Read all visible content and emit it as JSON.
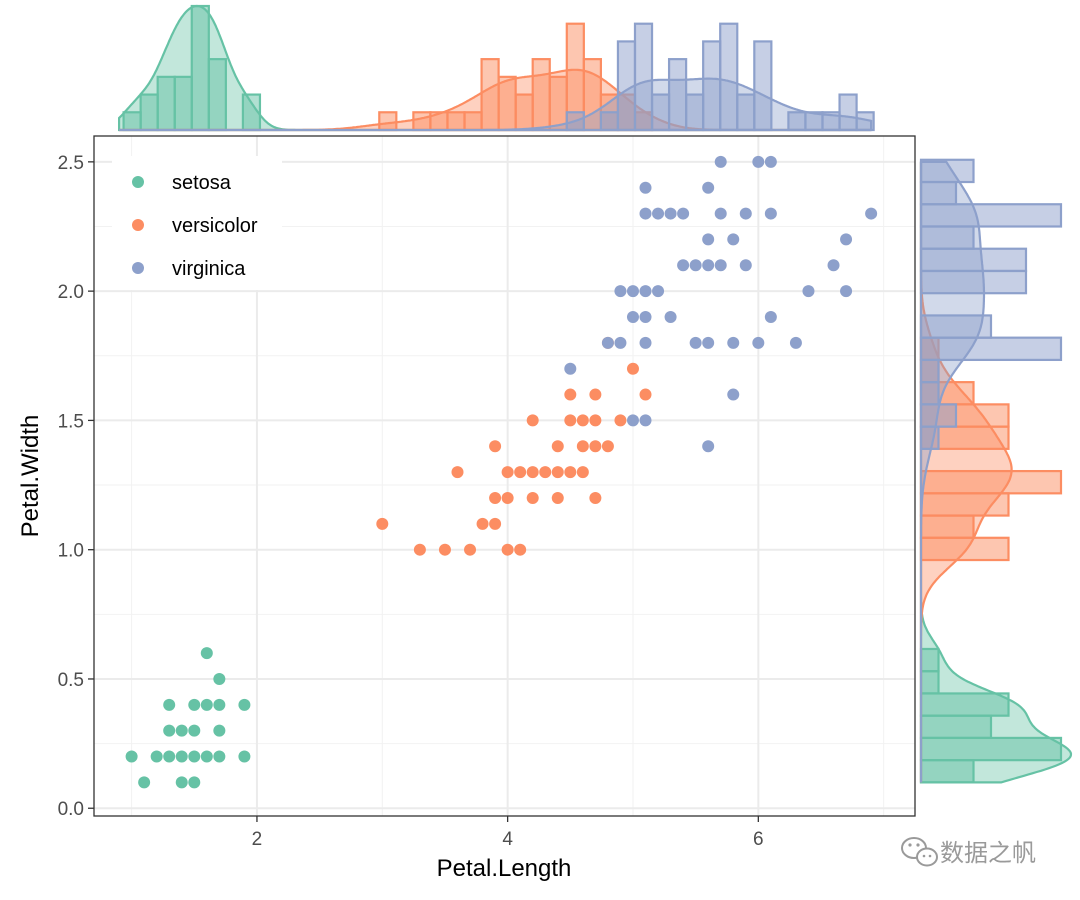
{
  "chart_data": {
    "type": "scatter",
    "xlabel": "Petal.Length",
    "ylabel": "Petal.Width",
    "xlim": [
      0.7,
      7.25
    ],
    "ylim": [
      -0.03,
      2.6
    ],
    "x_ticks": [
      2,
      4,
      6
    ],
    "y_ticks": [
      0.0,
      0.5,
      1.0,
      1.5,
      2.0,
      2.5
    ],
    "x_tick_labels": [
      "2",
      "4",
      "6"
    ],
    "y_tick_labels": [
      "0.0",
      "0.5",
      "1.0",
      "1.5",
      "2.0",
      "2.5"
    ],
    "grid": true,
    "legend_position": "top-left",
    "marginals": "histogram with density curve on top (x) and right (y)",
    "series": [
      {
        "name": "setosa",
        "color": "#66C2A5",
        "points": [
          [
            1.0,
            0.2
          ],
          [
            1.1,
            0.1
          ],
          [
            1.2,
            0.2
          ],
          [
            1.3,
            0.2
          ],
          [
            1.3,
            0.3
          ],
          [
            1.3,
            0.4
          ],
          [
            1.4,
            0.1
          ],
          [
            1.4,
            0.2
          ],
          [
            1.4,
            0.3
          ],
          [
            1.5,
            0.1
          ],
          [
            1.5,
            0.2
          ],
          [
            1.5,
            0.3
          ],
          [
            1.5,
            0.4
          ],
          [
            1.6,
            0.2
          ],
          [
            1.6,
            0.4
          ],
          [
            1.6,
            0.6
          ],
          [
            1.7,
            0.2
          ],
          [
            1.7,
            0.3
          ],
          [
            1.7,
            0.4
          ],
          [
            1.7,
            0.5
          ],
          [
            1.9,
            0.2
          ],
          [
            1.9,
            0.4
          ]
        ]
      },
      {
        "name": "versicolor",
        "color": "#FC8D62",
        "points": [
          [
            3.0,
            1.1
          ],
          [
            3.3,
            1.0
          ],
          [
            3.5,
            1.0
          ],
          [
            3.6,
            1.3
          ],
          [
            3.7,
            1.0
          ],
          [
            3.8,
            1.1
          ],
          [
            3.9,
            1.1
          ],
          [
            3.9,
            1.2
          ],
          [
            3.9,
            1.4
          ],
          [
            4.0,
            1.0
          ],
          [
            4.0,
            1.2
          ],
          [
            4.0,
            1.3
          ],
          [
            4.1,
            1.0
          ],
          [
            4.1,
            1.3
          ],
          [
            4.2,
            1.2
          ],
          [
            4.2,
            1.3
          ],
          [
            4.2,
            1.5
          ],
          [
            4.3,
            1.3
          ],
          [
            4.4,
            1.2
          ],
          [
            4.4,
            1.3
          ],
          [
            4.4,
            1.4
          ],
          [
            4.5,
            1.3
          ],
          [
            4.5,
            1.5
          ],
          [
            4.5,
            1.6
          ],
          [
            4.6,
            1.3
          ],
          [
            4.6,
            1.4
          ],
          [
            4.6,
            1.5
          ],
          [
            4.7,
            1.2
          ],
          [
            4.7,
            1.4
          ],
          [
            4.7,
            1.5
          ],
          [
            4.7,
            1.6
          ],
          [
            4.8,
            1.4
          ],
          [
            4.8,
            1.8
          ],
          [
            4.9,
            1.5
          ],
          [
            5.0,
            1.7
          ],
          [
            5.1,
            1.6
          ]
        ]
      },
      {
        "name": "virginica",
        "color": "#8DA0CB",
        "points": [
          [
            4.5,
            1.7
          ],
          [
            4.8,
            1.8
          ],
          [
            4.9,
            1.8
          ],
          [
            4.9,
            2.0
          ],
          [
            5.0,
            1.5
          ],
          [
            5.0,
            1.9
          ],
          [
            5.0,
            2.0
          ],
          [
            5.1,
            1.5
          ],
          [
            5.1,
            1.8
          ],
          [
            5.1,
            1.9
          ],
          [
            5.1,
            2.0
          ],
          [
            5.1,
            2.3
          ],
          [
            5.1,
            2.4
          ],
          [
            5.2,
            2.0
          ],
          [
            5.2,
            2.3
          ],
          [
            5.3,
            1.9
          ],
          [
            5.3,
            2.3
          ],
          [
            5.4,
            2.1
          ],
          [
            5.4,
            2.3
          ],
          [
            5.5,
            1.8
          ],
          [
            5.5,
            2.1
          ],
          [
            5.6,
            1.4
          ],
          [
            5.6,
            1.8
          ],
          [
            5.6,
            2.1
          ],
          [
            5.6,
            2.2
          ],
          [
            5.6,
            2.4
          ],
          [
            5.7,
            2.1
          ],
          [
            5.7,
            2.3
          ],
          [
            5.7,
            2.5
          ],
          [
            5.8,
            1.6
          ],
          [
            5.8,
            1.8
          ],
          [
            5.8,
            2.2
          ],
          [
            5.9,
            2.1
          ],
          [
            5.9,
            2.3
          ],
          [
            6.0,
            1.8
          ],
          [
            6.0,
            2.5
          ],
          [
            6.1,
            1.9
          ],
          [
            6.1,
            2.3
          ],
          [
            6.1,
            2.5
          ],
          [
            6.3,
            1.8
          ],
          [
            6.4,
            2.0
          ],
          [
            6.6,
            2.1
          ],
          [
            6.7,
            2.0
          ],
          [
            6.7,
            2.2
          ],
          [
            6.9,
            2.3
          ]
        ]
      }
    ]
  },
  "watermark": {
    "text": "数据之帆"
  }
}
